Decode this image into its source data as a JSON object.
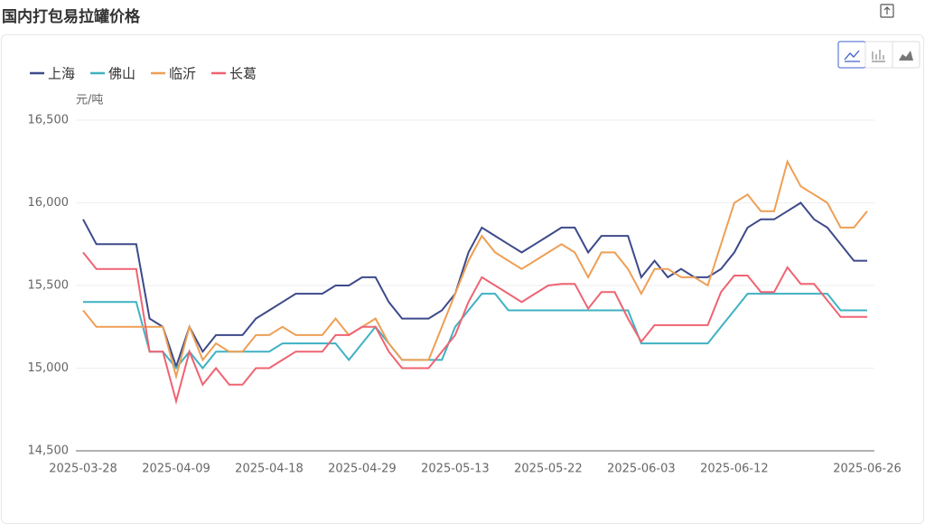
{
  "title": "国内打包易拉罐价格",
  "chart_data": {
    "type": "line",
    "y_unit": "元/吨",
    "categories": [
      "2025-03-28",
      null,
      null,
      null,
      null,
      null,
      null,
      "2025-04-09",
      null,
      null,
      null,
      null,
      null,
      null,
      "2025-04-18",
      null,
      null,
      null,
      null,
      null,
      null,
      "2025-04-29",
      null,
      null,
      null,
      null,
      null,
      null,
      "2025-05-13",
      null,
      null,
      null,
      null,
      null,
      null,
      "2025-05-22",
      null,
      null,
      null,
      null,
      null,
      null,
      "2025-06-03",
      null,
      null,
      null,
      null,
      null,
      null,
      "2025-06-12",
      null,
      null,
      null,
      null,
      null,
      null,
      null,
      null,
      null,
      "2025-06-26"
    ],
    "series": [
      {
        "name": "上海",
        "color": "#3d4a8a",
        "values": [
          15900,
          15750,
          15750,
          15750,
          15750,
          15300,
          15250,
          15010,
          15250,
          15100,
          15200,
          15200,
          15200,
          15300,
          15350,
          15400,
          15450,
          15450,
          15450,
          15500,
          15500,
          15550,
          15550,
          15400,
          15300,
          15300,
          15300,
          15350,
          15450,
          15700,
          15850,
          15800,
          15750,
          15700,
          15750,
          15800,
          15850,
          15850,
          15700,
          15800,
          15800,
          15800,
          15550,
          15650,
          15550,
          15600,
          15550,
          15550,
          15600,
          15700,
          15850,
          15900,
          15900,
          15950,
          16000,
          15900,
          15850,
          15750,
          15650,
          15650
        ]
      },
      {
        "name": "佛山",
        "color": "#3fb1c3",
        "values": [
          15400,
          15400,
          15400,
          15400,
          15400,
          15100,
          15100,
          15000,
          15100,
          15000,
          15100,
          15100,
          15100,
          15100,
          15100,
          15150,
          15150,
          15150,
          15150,
          15150,
          15050,
          15150,
          15250,
          15150,
          15050,
          15050,
          15050,
          15050,
          15250,
          15350,
          15450,
          15450,
          15350,
          15350,
          15350,
          15350,
          15350,
          15350,
          15350,
          15350,
          15350,
          15350,
          15150,
          15150,
          15150,
          15150,
          15150,
          15150,
          15250,
          15350,
          15450,
          15450,
          15450,
          15450,
          15450,
          15450,
          15450,
          15350,
          15350,
          15350
        ]
      },
      {
        "name": "临沂",
        "color": "#ee9f55",
        "values": [
          15350,
          15250,
          15250,
          15250,
          15250,
          15250,
          15250,
          14950,
          15250,
          15050,
          15150,
          15100,
          15100,
          15200,
          15200,
          15250,
          15200,
          15200,
          15200,
          15300,
          15200,
          15250,
          15300,
          15150,
          15050,
          15050,
          15050,
          15250,
          15450,
          15650,
          15800,
          15700,
          15650,
          15600,
          15650,
          15700,
          15750,
          15700,
          15550,
          15700,
          15700,
          15600,
          15450,
          15600,
          15600,
          15550,
          15550,
          15500,
          15750,
          16000,
          16050,
          15950,
          15950,
          16250,
          16100,
          16050,
          16000,
          15850,
          15850,
          15950
        ]
      },
      {
        "name": "长葛",
        "color": "#ef6372",
        "values": [
          15700,
          15600,
          15600,
          15600,
          15600,
          15100,
          15100,
          14800,
          15100,
          14900,
          15000,
          14900,
          14900,
          15000,
          15000,
          15050,
          15100,
          15100,
          15100,
          15200,
          15200,
          15250,
          15250,
          15100,
          15000,
          15000,
          15000,
          15100,
          15200,
          15400,
          15550,
          15500,
          15450,
          15400,
          15450,
          15500,
          15510,
          15510,
          15360,
          15460,
          15460,
          15300,
          15160,
          15260,
          15260,
          15260,
          15260,
          15260,
          15460,
          15560,
          15560,
          15460,
          15460,
          15610,
          15510,
          15510,
          15410,
          15310,
          15310,
          15310
        ]
      }
    ],
    "ylim": [
      14500,
      16500
    ],
    "yticks": [
      {
        "value": 14500,
        "label": "14,500"
      },
      {
        "value": 15000,
        "label": "15,000"
      },
      {
        "value": 15500,
        "label": "15,500"
      },
      {
        "value": 16000,
        "label": "16,000"
      },
      {
        "value": 16500,
        "label": "16,500"
      }
    ],
    "grid": true,
    "legend": "top-left"
  }
}
